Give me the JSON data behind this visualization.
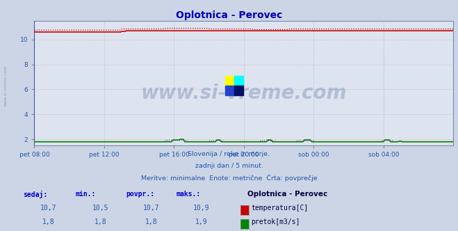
{
  "title": "Oplotnica - Perovec",
  "title_color": "#0000bb",
  "bg_color": "#ccd5e5",
  "plot_bg_color": "#dde4f0",
  "grid_color": "#ddaaaa",
  "grid_color_v": "#aaaacc",
  "xlabel_ticks": [
    "pet 08:00",
    "pet 12:00",
    "pet 16:00",
    "pet 20:00",
    "sob 00:00",
    "sob 04:00"
  ],
  "tick_positions": [
    0.0,
    0.1667,
    0.3333,
    0.5,
    0.6667,
    0.8333
  ],
  "ylim": [
    1.5,
    11.5
  ],
  "yticks": [
    2,
    4,
    6,
    8,
    10
  ],
  "temp_color": "#cc0000",
  "flow_color": "#008800",
  "flow_dot_color": "#aa00aa",
  "watermark_text": "www.si-vreme.com",
  "watermark_color": "#1a3a7a",
  "watermark_alpha": 0.22,
  "subtitle_lines": [
    "Slovenija / reke in morje.",
    "zadnji dan / 5 minut.",
    "Meritve: minimalne  Enote: metrične  Črta: povprečje"
  ],
  "subtitle_color": "#2255aa",
  "table_headers": [
    "sedaj:",
    "min.:",
    "povpr.:",
    "maks.:"
  ],
  "table_row1": [
    "10,7",
    "10,5",
    "10,7",
    "10,9"
  ],
  "table_row2": [
    "1,8",
    "1,8",
    "1,8",
    "1,9"
  ],
  "legend_station": "Oplotnica - Perovec",
  "legend_temp": "temperatura[C]",
  "legend_flow": "pretok[m3/s]",
  "n_points": 288,
  "left_label": "www.si-vreme.com"
}
